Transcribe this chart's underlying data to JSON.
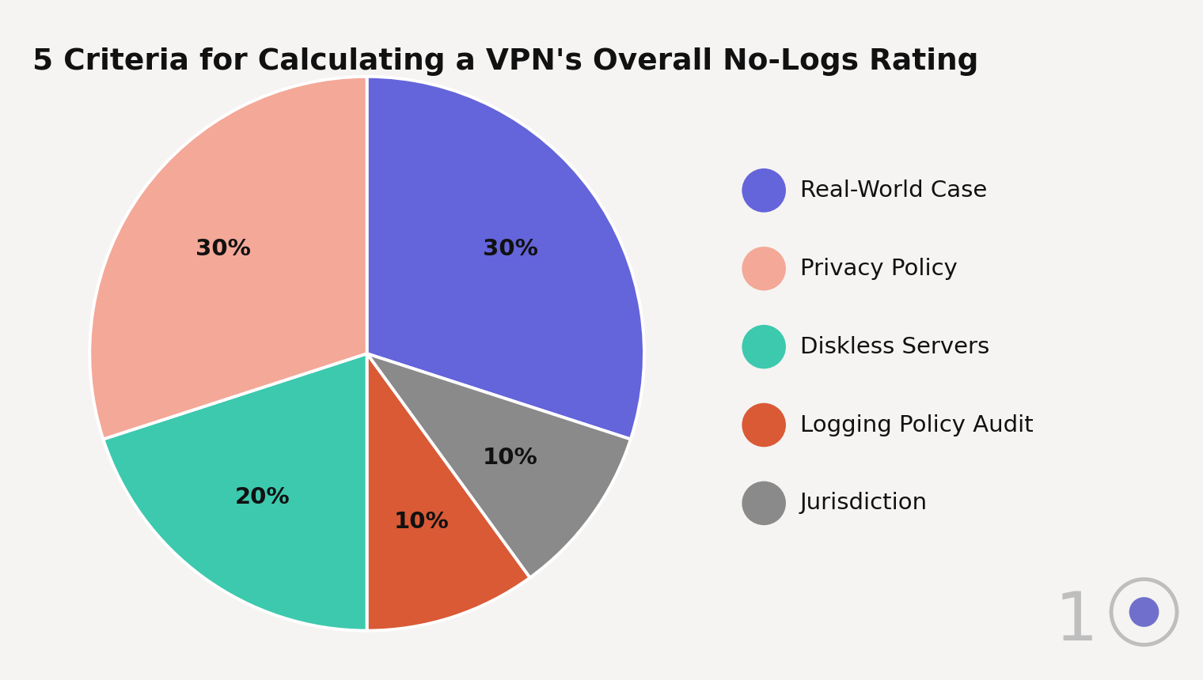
{
  "title": "5 Criteria for Calculating a VPN's Overall No-Logs Rating",
  "slices_draw": [
    {
      "label": "Real-World Case",
      "pct": 30,
      "color": "#6464DB"
    },
    {
      "label": "Jurisdiction",
      "pct": 10,
      "color": "#8A8A8A"
    },
    {
      "label": "Logging Policy Audit",
      "pct": 10,
      "color": "#D95A35"
    },
    {
      "label": "Diskless Servers",
      "pct": 20,
      "color": "#3DC9AE"
    },
    {
      "label": "Privacy Policy",
      "pct": 30,
      "color": "#F4A898"
    }
  ],
  "slices_legend": [
    {
      "label": "Real-World Case",
      "color": "#6464DB"
    },
    {
      "label": "Privacy Policy",
      "color": "#F4A898"
    },
    {
      "label": "Diskless Servers",
      "color": "#3DC9AE"
    },
    {
      "label": "Logging Policy Audit",
      "color": "#D95A35"
    },
    {
      "label": "Jurisdiction",
      "color": "#8A8A8A"
    }
  ],
  "background_color": "#F5F4F2",
  "title_fontsize": 27,
  "label_fontsize": 21,
  "legend_fontsize": 21,
  "start_angle": 90,
  "pct_label_color": "#111111",
  "watermark_1_color": "#BEBEBE",
  "watermark_circle_edge": "#BEBEBE",
  "watermark_circle_fill": "#7070CC"
}
